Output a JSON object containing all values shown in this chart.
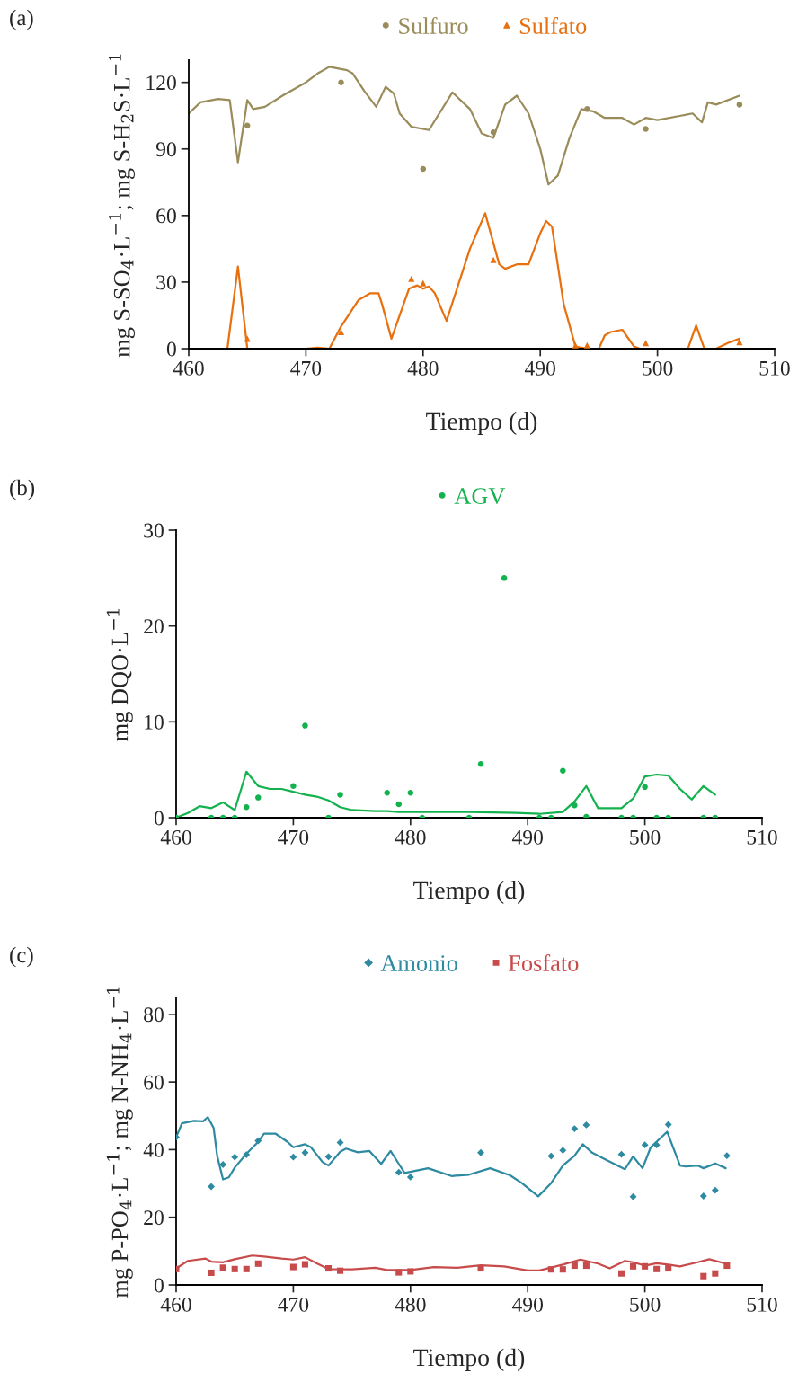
{
  "chart_data": [
    {
      "type": "scatter",
      "annotations": [
        "(a)"
      ],
      "xlabel": "Tiempo (d)",
      "ylabel": "mg S-SO$_{4}$·L$^{−1}$; mg S-H$_{2}$S·L$^{−1}$",
      "xlim": [
        460,
        510
      ],
      "xticks": [
        460,
        470,
        480,
        490,
        500,
        510
      ],
      "ylim": [
        0,
        130
      ],
      "yticks": [
        0,
        30,
        60,
        90,
        120
      ],
      "grid": false,
      "legend": "top",
      "series": [
        {
          "name": "Sulfuro",
          "color": "#9a8c5a",
          "marker": "circle",
          "x": [
            465,
            473,
            480,
            486,
            494,
            499,
            507
          ],
          "values": [
            100.5,
            120,
            81,
            97.5,
            108,
            99,
            110
          ]
        },
        {
          "name": "Sulfato",
          "color": "#e8700f",
          "marker": "triangle",
          "x": [
            465,
            473,
            479,
            480,
            486,
            493,
            494,
            499,
            507
          ],
          "values": [
            4.5,
            7.5,
            31.5,
            29.5,
            40,
            1.5,
            1.5,
            2.5,
            3
          ]
        },
        {
          "type": "line",
          "color": "#9a8c5a",
          "x": [
            460,
            461,
            462.5,
            463.5,
            464.2,
            465,
            465.5,
            466.5,
            468,
            470,
            471,
            472,
            473.5,
            474,
            475,
            476,
            476.8,
            477.5,
            478,
            479,
            480.5,
            482.5,
            484,
            485,
            486,
            487,
            488,
            489,
            490,
            490.7,
            491.5,
            492.5,
            493.5,
            494.5,
            495.5,
            497,
            498,
            499,
            500,
            502,
            503,
            503.8,
            504.3,
            505,
            507
          ],
          "values": [
            106,
            111,
            112.5,
            112,
            84,
            112,
            108,
            109,
            114,
            120,
            124,
            127,
            125.5,
            124,
            116,
            109,
            118,
            115,
            106,
            100,
            98.5,
            115.5,
            108,
            97,
            95,
            110,
            114,
            106,
            90,
            74,
            78,
            95,
            108,
            107,
            104,
            104,
            101,
            104,
            103,
            105,
            106,
            102,
            111,
            110,
            114
          ]
        },
        {
          "type": "line",
          "color": "#e8700f",
          "x": [
            460,
            463.3,
            464.2,
            465,
            470,
            471,
            472,
            473,
            474.5,
            475.5,
            476.2,
            476.5,
            477.3,
            478.8,
            479.5,
            480,
            480.5,
            481,
            482,
            484,
            485.3,
            486.5,
            487,
            488,
            489,
            490,
            490.5,
            491,
            492,
            493,
            494,
            495,
            495.5,
            496,
            497,
            498,
            498.5,
            502.6,
            503.3,
            504,
            505,
            506,
            507
          ],
          "values": [
            0,
            0,
            37,
            0,
            0,
            0.5,
            0,
            10,
            22,
            25,
            25,
            20,
            4.5,
            27,
            28.5,
            27,
            28,
            25,
            12.5,
            45,
            61,
            38,
            36,
            38,
            38,
            52,
            57.5,
            55,
            20,
            1,
            0,
            0,
            6,
            7.5,
            8.5,
            1,
            0,
            0,
            10.5,
            0,
            0,
            2.5,
            4.5
          ]
        }
      ]
    },
    {
      "type": "scatter",
      "annotations": [
        "(b)"
      ],
      "xlabel": "Tiempo (d)",
      "ylabel": "mg DQO·L$^{−1}$",
      "xlim": [
        460,
        510
      ],
      "xticks": [
        460,
        470,
        480,
        490,
        500,
        510
      ],
      "ylim": [
        0,
        30
      ],
      "yticks": [
        0,
        10,
        20,
        30
      ],
      "grid": false,
      "legend": "top",
      "series": [
        {
          "name": "AGV",
          "color": "#14b24e",
          "marker": "circle",
          "x": [
            460,
            463,
            464,
            465,
            466,
            467,
            470,
            471,
            473,
            474,
            478,
            479,
            480,
            481,
            485,
            486,
            488,
            491,
            492,
            493,
            494,
            495,
            498,
            499,
            500,
            501,
            502,
            505,
            506
          ],
          "values": [
            0,
            0,
            0,
            0,
            1.1,
            2.1,
            3.3,
            9.6,
            0,
            2.4,
            2.6,
            1.4,
            2.6,
            0,
            0,
            5.6,
            25,
            0,
            0,
            4.9,
            1.3,
            0.1,
            0,
            0,
            3.2,
            0,
            0,
            0,
            0
          ]
        },
        {
          "type": "line",
          "color": "#14b24e",
          "x": [
            460,
            461,
            462,
            463,
            464,
            465,
            466,
            467,
            468,
            469,
            470,
            471,
            472,
            473,
            474,
            475,
            477,
            478,
            479,
            481,
            485,
            489,
            491,
            493,
            494,
            495,
            496,
            498,
            499,
            500,
            501,
            502,
            503,
            504,
            505,
            506
          ],
          "values": [
            0,
            0.5,
            1.2,
            1.0,
            1.6,
            0.8,
            4.8,
            3.3,
            3.0,
            3.0,
            2.7,
            2.4,
            2.2,
            1.8,
            1.1,
            0.8,
            0.7,
            0.7,
            0.6,
            0.6,
            0.6,
            0.5,
            0.4,
            0.6,
            1.7,
            3.3,
            1.0,
            1.0,
            2.0,
            4.3,
            4.5,
            4.4,
            3.0,
            1.9,
            3.3,
            2.4
          ]
        }
      ]
    },
    {
      "type": "scatter",
      "annotations": [
        "(c)"
      ],
      "xlabel": "Tiempo (d)",
      "ylabel": "mg P-PO$_{4}$·L$^{−1}$; mg N-NH$_{4}$·L$^{−1}$",
      "xlim": [
        460,
        510
      ],
      "xticks": [
        460,
        470,
        480,
        490,
        500,
        510
      ],
      "ylim": [
        0,
        85
      ],
      "yticks": [
        0,
        20,
        40,
        60,
        80
      ],
      "grid": false,
      "legend": "top",
      "series": [
        {
          "name": "Amonio",
          "color": "#2e8aa0",
          "marker": "diamond",
          "x": [
            460,
            463,
            464,
            465,
            466,
            467,
            470,
            471,
            473,
            474,
            479,
            480,
            486,
            492,
            493,
            494,
            495,
            498,
            499,
            500,
            501,
            502,
            505,
            506,
            507
          ],
          "values": [
            43.7,
            29.1,
            35.6,
            37.8,
            38.5,
            42.6,
            37.8,
            39.1,
            37.9,
            42.1,
            33.3,
            31.9,
            39.1,
            38.1,
            39.8,
            46.2,
            47.3,
            38.6,
            26.1,
            41.4,
            41.4,
            47.4,
            26.3,
            28.0,
            38.2
          ]
        },
        {
          "name": "Fosfato",
          "color": "#c84b4b",
          "marker": "square",
          "x": [
            460,
            463,
            464,
            465,
            466,
            467,
            470,
            471,
            473,
            474,
            479,
            480,
            486,
            492,
            493,
            494,
            495,
            498,
            499,
            500,
            501,
            502,
            505,
            506,
            507
          ],
          "values": [
            4.7,
            3.6,
            5.1,
            4.7,
            4.7,
            6.3,
            5.3,
            6.1,
            4.9,
            4.2,
            3.7,
            4.0,
            4.9,
            4.6,
            4.6,
            5.7,
            5.7,
            3.4,
            5.5,
            5.5,
            4.7,
            4.9,
            2.6,
            3.4,
            5.7
          ]
        },
        {
          "type": "line",
          "color": "#2e8aa0",
          "x": [
            460,
            460.5,
            461.5,
            462.3,
            462.7,
            463.2,
            463.5,
            464,
            464.5,
            465,
            466,
            467,
            467.5,
            468.5,
            469.5,
            470,
            471,
            471.5,
            472.5,
            473,
            474,
            474.5,
            475.5,
            476.5,
            477.5,
            478.3,
            479,
            479.5,
            481.5,
            483.5,
            485,
            486.8,
            488.5,
            489.5,
            490.9,
            492,
            493,
            494,
            494.7,
            495.5,
            496.5,
            498.3,
            499,
            499.8,
            500.5,
            501.9,
            503,
            503.5,
            504.5,
            505,
            506,
            506.9
          ],
          "values": [
            43.7,
            47.8,
            48.5,
            48.4,
            49.6,
            46.4,
            38.2,
            31.2,
            31.8,
            34.7,
            38.8,
            42.3,
            44.7,
            44.7,
            42.3,
            40.7,
            41.6,
            40.7,
            36.3,
            35.3,
            39.4,
            40.3,
            39.2,
            39.6,
            35.8,
            39.6,
            35.8,
            33.1,
            34.5,
            32.2,
            32.6,
            34.5,
            32.4,
            30.1,
            26.2,
            30.1,
            35.3,
            38.2,
            41.6,
            39.1,
            37.3,
            34.2,
            38.0,
            34.5,
            40.7,
            45.3,
            35.3,
            35.0,
            35.3,
            34.5,
            35.9,
            34.5
          ]
        },
        {
          "type": "line",
          "color": "#c84b4b",
          "x": [
            460,
            461,
            462.5,
            463,
            464,
            465,
            466.5,
            467.5,
            469,
            470,
            471,
            472,
            473,
            475,
            477,
            478,
            480,
            482,
            484,
            486,
            488,
            490,
            491,
            493,
            494.5,
            496,
            497,
            498.3,
            499,
            500,
            501,
            502,
            503,
            504.5,
            505.5,
            506.9
          ],
          "values": [
            4.9,
            7.1,
            7.8,
            6.9,
            6.7,
            7.6,
            8.7,
            8.4,
            7.8,
            7.5,
            8.2,
            6.4,
            4.7,
            4.6,
            5.1,
            4.4,
            4.4,
            5.3,
            5.1,
            5.8,
            5.5,
            4.3,
            4.3,
            6.0,
            7.5,
            6.3,
            4.9,
            7.1,
            6.7,
            5.7,
            6.4,
            6.0,
            5.5,
            6.7,
            7.6,
            6.3
          ]
        }
      ]
    }
  ]
}
